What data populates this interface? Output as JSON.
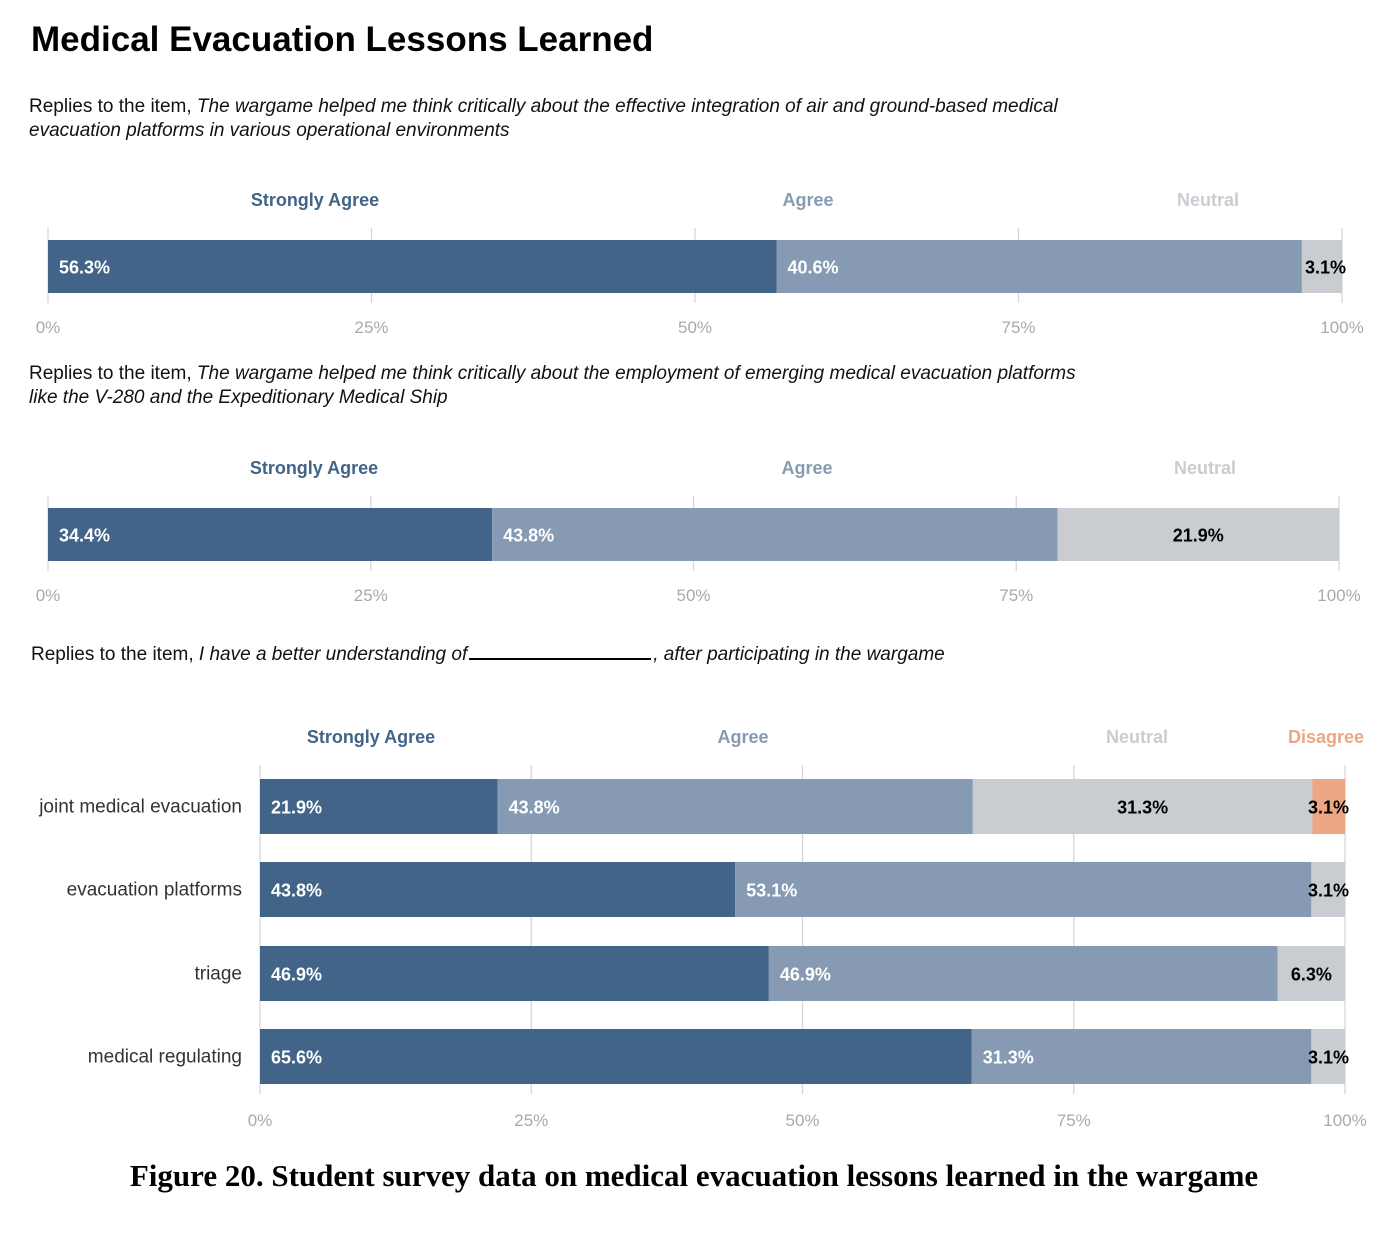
{
  "title": "Medical Evacuation Lessons Learned",
  "colors": {
    "strongly_agree": "#416488",
    "agree": "#869bb3",
    "neutral": "#c9cdd1",
    "disagree": "#eda683",
    "grid": "#d7d7d7",
    "tick_text": "#a9a9a9",
    "label_dark": "#000000",
    "label_light": "#ffffff"
  },
  "prompts": [
    {
      "prefix": "Replies to the item, ",
      "italic_line1": "The wargame helped me think critically about the effective integration of air and ground-based medical",
      "italic_line2": "evacuation platforms in various operational environments"
    },
    {
      "prefix": "Replies to the item, ",
      "italic_line1": "The wargame helped me think critically about the employment of emerging medical evacuation platforms",
      "italic_line2": "like the V-280 and the Expeditionary Medical Ship"
    },
    {
      "prefix": "Replies to the item, ",
      "italic_before": "I have a better understanding of",
      "italic_after": ", after participating in the wargame"
    }
  ],
  "chart_data": [
    {
      "type": "bar",
      "orientation": "horizontal",
      "stacked": true,
      "title": "Replies to the item, The wargame helped me think critically about the effective integration of air and ground-based medical evacuation platforms in various operational environments",
      "categories": [
        ""
      ],
      "series": [
        {
          "name": "Strongly Agree",
          "values": [
            56.3
          ],
          "labels": [
            "56.3%"
          ]
        },
        {
          "name": "Agree",
          "values": [
            40.6
          ],
          "labels": [
            "40.6%"
          ]
        },
        {
          "name": "Neutral",
          "values": [
            3.1
          ],
          "labels": [
            "3.1%"
          ]
        }
      ],
      "xlim": [
        0,
        100
      ],
      "xticks": [
        "0%",
        "25%",
        "50%",
        "75%",
        "100%"
      ],
      "legend": "top",
      "grid": true
    },
    {
      "type": "bar",
      "orientation": "horizontal",
      "stacked": true,
      "title": "Replies to the item, The wargame helped me think critically about the employment of emerging medical evacuation platforms like the V-280 and the Expeditionary Medical Ship",
      "categories": [
        ""
      ],
      "series": [
        {
          "name": "Strongly Agree",
          "values": [
            34.4
          ],
          "labels": [
            "34.4%"
          ]
        },
        {
          "name": "Agree",
          "values": [
            43.8
          ],
          "labels": [
            "43.8%"
          ]
        },
        {
          "name": "Neutral",
          "values": [
            21.9
          ],
          "labels": [
            "21.9%"
          ]
        }
      ],
      "xlim": [
        0,
        100
      ],
      "xticks": [
        "0%",
        "25%",
        "50%",
        "75%",
        "100%"
      ],
      "legend": "top",
      "grid": true
    },
    {
      "type": "bar",
      "orientation": "horizontal",
      "stacked": true,
      "title": "Replies to the item, I have a better understanding of ____, after participating in the wargame",
      "categories": [
        "joint medical evacuation",
        "evacuation platforms",
        "triage",
        "medical regulating"
      ],
      "series": [
        {
          "name": "Strongly Agree",
          "values": [
            21.9,
            43.8,
            46.9,
            65.6
          ],
          "labels": [
            "21.9%",
            "43.8%",
            "46.9%",
            "65.6%"
          ]
        },
        {
          "name": "Agree",
          "values": [
            43.8,
            53.1,
            46.9,
            31.3
          ],
          "labels": [
            "43.8%",
            "53.1%",
            "46.9%",
            "31.3%"
          ]
        },
        {
          "name": "Neutral",
          "values": [
            31.3,
            3.1,
            6.3,
            3.1
          ],
          "labels": [
            "31.3%",
            "3.1%",
            "6.3%",
            "3.1%"
          ]
        },
        {
          "name": "Disagree",
          "values": [
            3.1,
            0,
            0,
            0
          ],
          "labels": [
            "3.1%",
            "",
            "",
            ""
          ]
        }
      ],
      "xlim": [
        0,
        100
      ],
      "xticks": [
        "0%",
        "25%",
        "50%",
        "75%",
        "100%"
      ],
      "legend": "top",
      "grid": true
    }
  ],
  "caption": "Figure 20. Student survey data on medical evacuation lessons learned in the wargame"
}
